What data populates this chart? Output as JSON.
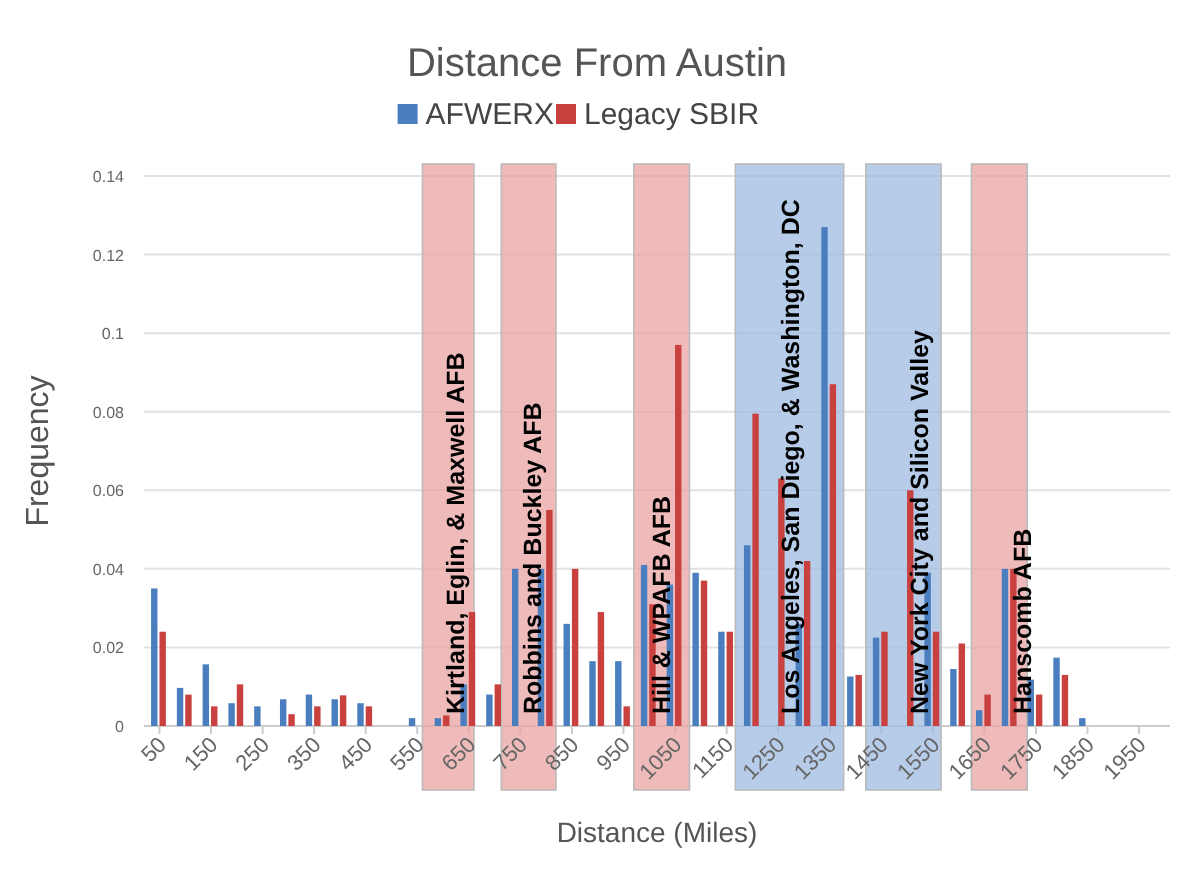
{
  "chart_data": {
    "type": "bar",
    "title": "Distance From Austin",
    "xlabel": "Distance (Miles)",
    "ylabel": "Frequency",
    "x": [
      50,
      100,
      150,
      200,
      250,
      300,
      350,
      400,
      450,
      500,
      550,
      600,
      650,
      700,
      750,
      800,
      850,
      900,
      950,
      1000,
      1050,
      1100,
      1150,
      1200,
      1250,
      1300,
      1350,
      1400,
      1450,
      1500,
      1550,
      1600,
      1650,
      1700,
      1750,
      1800,
      1850,
      1900,
      1950
    ],
    "series": [
      {
        "name": "AFWERX",
        "color": "#4a7ebf",
        "values": [
          0.035,
          0.0097,
          0.0157,
          0.0058,
          0.005,
          0.0068,
          0.008,
          0.0068,
          0.0058,
          0,
          0.002,
          0.002,
          0.0106,
          0.008,
          0.04,
          0.04,
          0.026,
          0.0165,
          0.0165,
          0.041,
          0.036,
          0.039,
          0.024,
          0.046,
          null,
          0.026,
          0.127,
          0.0126,
          0.0225,
          null,
          0.039,
          0.0145,
          0.004,
          0.04,
          0.0118,
          0.0174,
          0.002,
          0,
          0
        ]
      },
      {
        "name": "Legacy SBIR",
        "color": "#c9413f",
        "values": [
          0.024,
          0.008,
          0.005,
          0.0106,
          0,
          0.003,
          0.005,
          0.0078,
          0.005,
          0,
          0,
          0.0027,
          0.029,
          0.0106,
          null,
          0.055,
          0.04,
          0.029,
          0.005,
          0.031,
          0.097,
          0.037,
          0.024,
          0.0795,
          0.063,
          0.042,
          0.087,
          0.013,
          0.024,
          0.06,
          0.024,
          0.021,
          0.008,
          0.04,
          0.008,
          0.013,
          0,
          0,
          0
        ]
      }
    ],
    "xlim": [
      20,
      2010
    ],
    "xticks": [
      50,
      150,
      250,
      350,
      450,
      550,
      650,
      750,
      850,
      950,
      1050,
      1150,
      1250,
      1350,
      1450,
      1550,
      1650,
      1750,
      1850,
      1950
    ],
    "ylim": [
      0,
      0.14
    ],
    "yticks": [
      0,
      0.02,
      0.04,
      0.06,
      0.08,
      0.1,
      0.12,
      0.14
    ],
    "grid": "y",
    "legend": "top",
    "bands": [
      {
        "axis": "x",
        "from": 560,
        "to": 660,
        "label": "Kirtland, Eglin, & Maxwell AFB",
        "color": "#e9a3a3"
      },
      {
        "axis": "x",
        "from": 713,
        "to": 819,
        "label": "Robbins and Buckley AFB",
        "color": "#e9a3a3"
      },
      {
        "axis": "x",
        "from": 970,
        "to": 1078,
        "label": "Hill & WPAFB AFB",
        "color": "#e9a3a3"
      },
      {
        "axis": "x",
        "from": 1167,
        "to": 1377,
        "label": "Los Angeles, San Diego, & Washington, DC",
        "color": "#9dbbe0"
      },
      {
        "axis": "x",
        "from": 1420,
        "to": 1566,
        "label": "New York City and Silicon Valley",
        "color": "#9dbbe0"
      },
      {
        "axis": "x",
        "from": 1625,
        "to": 1733,
        "label": "Hanscomb AFB",
        "color": "#e9a3a3"
      }
    ]
  }
}
